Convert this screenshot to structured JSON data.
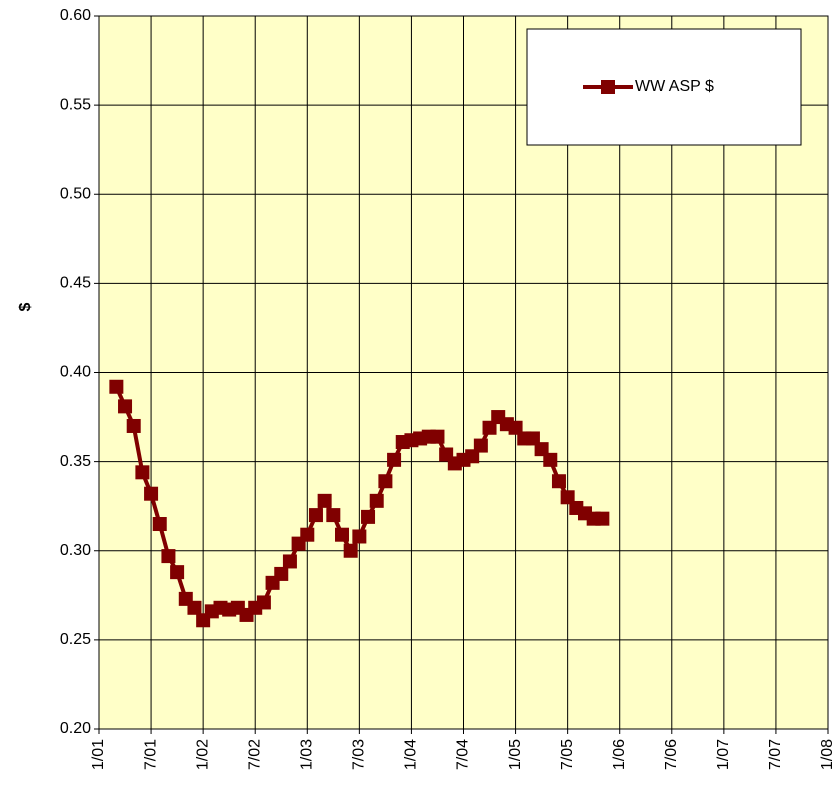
{
  "chart_data": {
    "type": "line",
    "ylabel": "$",
    "x": [
      "3/01",
      "4/01",
      "5/01",
      "6/01",
      "7/01",
      "8/01",
      "9/01",
      "10/01",
      "11/01",
      "12/01",
      "1/02",
      "2/02",
      "3/02",
      "4/02",
      "5/02",
      "6/02",
      "7/02",
      "8/02",
      "9/02",
      "10/02",
      "11/02",
      "12/02",
      "1/03",
      "2/03",
      "3/03",
      "4/03",
      "5/03",
      "6/03",
      "7/03",
      "8/03",
      "9/03",
      "10/03",
      "11/03",
      "12/03",
      "1/04",
      "2/04",
      "3/04",
      "4/04",
      "5/04",
      "6/04",
      "7/04",
      "8/04",
      "9/04",
      "10/04",
      "11/04",
      "12/04",
      "1/05",
      "2/05",
      "3/05",
      "4/05",
      "5/05",
      "6/05",
      "7/05",
      "8/05",
      "9/05",
      "10/05",
      "11/05"
    ],
    "series": [
      {
        "name": "WW ASP $",
        "color": "#800000",
        "values": [
          0.392,
          0.381,
          0.37,
          0.344,
          0.332,
          0.315,
          0.297,
          0.288,
          0.273,
          0.268,
          0.261,
          0.266,
          0.268,
          0.267,
          0.268,
          0.264,
          0.268,
          0.271,
          0.282,
          0.287,
          0.294,
          0.304,
          0.309,
          0.32,
          0.328,
          0.32,
          0.309,
          0.3,
          0.308,
          0.319,
          0.328,
          0.339,
          0.351,
          0.361,
          0.362,
          0.363,
          0.364,
          0.364,
          0.354,
          0.349,
          0.351,
          0.353,
          0.359,
          0.369,
          0.375,
          0.371,
          0.369,
          0.363,
          0.363,
          0.357,
          0.351,
          0.339,
          0.33,
          0.324,
          0.321,
          0.318,
          0.318
        ]
      }
    ],
    "xlim": [
      "1/01",
      "1/08"
    ],
    "xticks": [
      "1/01",
      "7/01",
      "1/02",
      "7/02",
      "1/03",
      "7/03",
      "1/04",
      "7/04",
      "1/05",
      "7/05",
      "1/06",
      "7/06",
      "1/07",
      "7/07",
      "1/08"
    ],
    "ylim": [
      0.2,
      0.6
    ],
    "yticks": [
      {
        "value": 0.2,
        "label": "0.20"
      },
      0.25,
      {
        "value": 0.3,
        "label": "0.30"
      },
      0.35,
      {
        "value": 0.4,
        "label": "0.40"
      },
      0.45,
      {
        "value": 0.5,
        "label": "0.50"
      },
      0.55,
      {
        "value": 0.6,
        "label": "0.60"
      }
    ],
    "grid": true,
    "plot_background": "#ffffc8",
    "legend": "top-right"
  }
}
